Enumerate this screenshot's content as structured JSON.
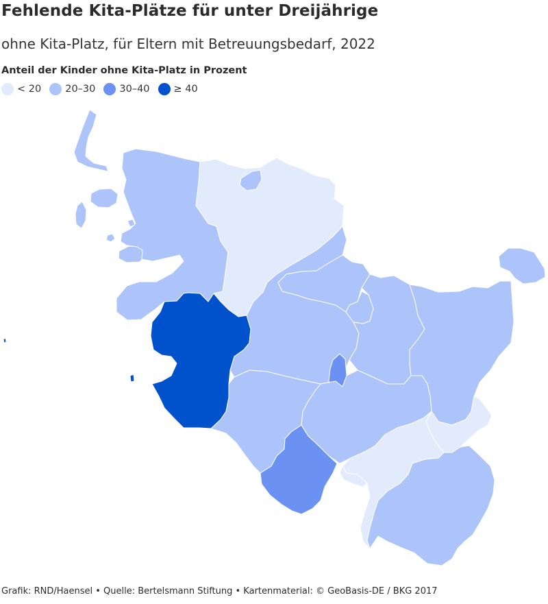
{
  "header": {
    "title": "Fehlende Kita-Plätze für unter Dreijährige",
    "subtitle": "ohne Kita-Platz, für Eltern mit Betreuungsbedarf, 2022"
  },
  "legend": {
    "title": "Anteil der Kinder ohne Kita-Platz in Prozent",
    "items": [
      {
        "label": "< 20",
        "color": "#e1ebfb"
      },
      {
        "label": "20–30",
        "color": "#adc4fa"
      },
      {
        "label": "30–40",
        "color": "#6b92f2"
      },
      {
        "label": "≥ 40",
        "color": "#0052cc"
      }
    ]
  },
  "colors": {
    "class_lt20": "#e1ebfb",
    "class_20_30": "#adc4fa",
    "class_30_40": "#6b92f2",
    "class_ge40": "#0052cc",
    "border": "#ffffff"
  },
  "footer": {
    "credit": "Grafik: RND/Haensel • Quelle: Bertelsmann Stiftung • Kartenmaterial: © GeoBasis-DE / BKG 2017"
  }
}
